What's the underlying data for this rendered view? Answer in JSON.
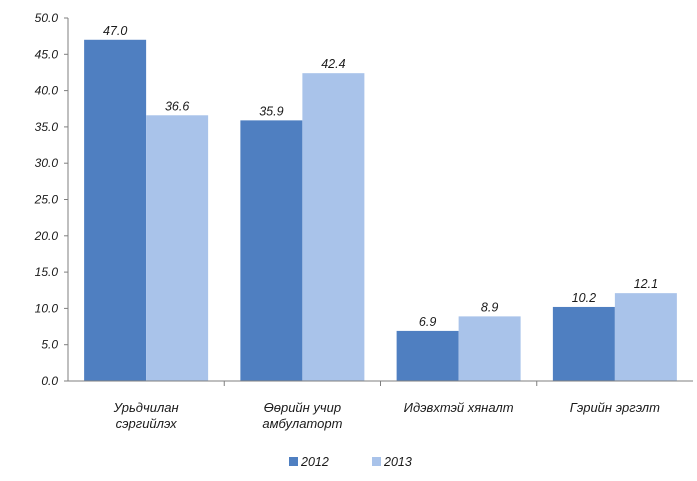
{
  "chart_data": {
    "type": "bar",
    "categories": [
      [
        "Урьдчилан",
        "сэргийлэх"
      ],
      [
        "Өөрийн учир",
        "амбулаторт"
      ],
      [
        "Идэвхтэй хяналт"
      ],
      [
        "Гэрийн эргэлт"
      ]
    ],
    "series": [
      {
        "name": "2012",
        "values": [
          47.0,
          35.9,
          6.9,
          10.2
        ],
        "labels": [
          "47.0",
          "35.9",
          "6.9",
          "10.2"
        ],
        "color": "#4f7fc1"
      },
      {
        "name": "2013",
        "values": [
          36.6,
          42.4,
          8.9,
          12.1
        ],
        "labels": [
          "36.6",
          "42.4",
          "8.9",
          "12.1"
        ],
        "color": "#a9c3ea"
      }
    ],
    "yticks": [
      "0.0",
      "5.0",
      "10.0",
      "15.0",
      "20.0",
      "25.0",
      "30.0",
      "35.0",
      "40.0",
      "45.0",
      "50.0"
    ],
    "ylim": [
      0,
      50
    ],
    "grid": false,
    "legend_position": "bottom",
    "title": "",
    "xlabel": "",
    "ylabel": ""
  }
}
